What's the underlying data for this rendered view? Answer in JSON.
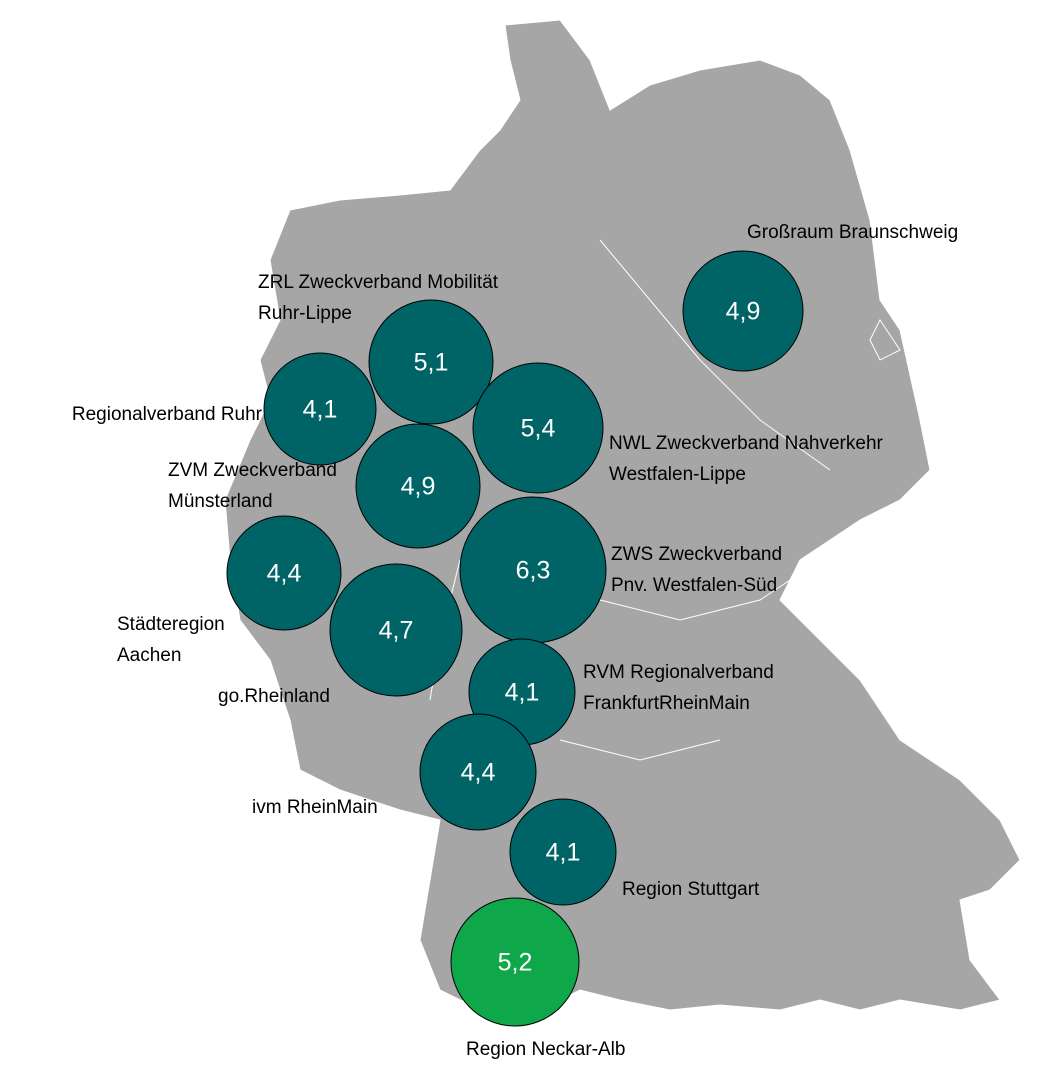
{
  "regions": [
    {
      "label": [
        "ZRL  Zweckverband Mobilität",
        "Ruhr-Lippe"
      ],
      "value": 5.1,
      "value_label": "5,1",
      "color": "#006467"
    },
    {
      "label": [
        "Regionalverband Ruhr"
      ],
      "value": 4.1,
      "value_label": "4,1",
      "color": "#006467"
    },
    {
      "label": [
        "NWL Zweckverband Nahverkehr",
        "Westfalen-Lippe"
      ],
      "value": 5.4,
      "value_label": "5,4",
      "color": "#006467"
    },
    {
      "label": [
        "ZVM Zweckverband",
        "Münsterland"
      ],
      "value": 4.9,
      "value_label": "4,9",
      "color": "#006467"
    },
    {
      "label": [
        "Städteregion",
        "Aachen"
      ],
      "value": 4.4,
      "value_label": "4,4",
      "color": "#006467"
    },
    {
      "label": [
        "ZWS Zweckverband",
        "Pnv. Westfalen-Süd"
      ],
      "value": 6.3,
      "value_label": "6,3",
      "color": "#006467"
    },
    {
      "label": [
        "go.Rheinland"
      ],
      "value": 4.7,
      "value_label": "4,7",
      "color": "#006467"
    },
    {
      "label": [
        "RVM Regionalverband",
        "FrankfurtRheinMain"
      ],
      "value": 4.1,
      "value_label": "4,1",
      "color": "#006467"
    },
    {
      "label": [
        "ivm RheinMain"
      ],
      "value": 4.4,
      "value_label": "4,4",
      "color": "#006467"
    },
    {
      "label": [
        "Region Stuttgart"
      ],
      "value": 4.1,
      "value_label": "4,1",
      "color": "#006467"
    },
    {
      "label": [
        "Region Neckar-Alb"
      ],
      "value": 5.2,
      "value_label": "5,2",
      "color": "#0ea84a"
    },
    {
      "label": [
        "Großraum Braunschweig"
      ],
      "value": 4.9,
      "value_label": "4,9",
      "color": "#006467"
    }
  ]
}
